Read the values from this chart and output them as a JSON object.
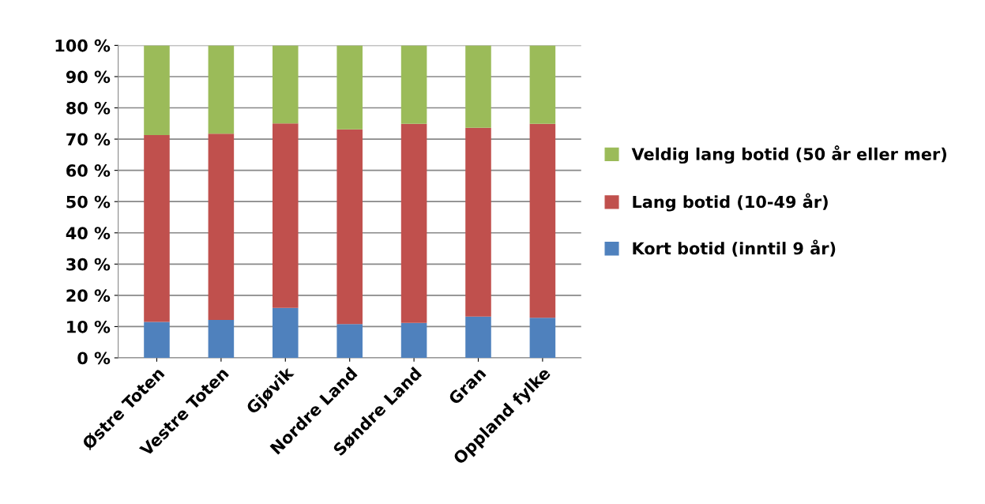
{
  "chart_data": {
    "type": "bar",
    "stacked": true,
    "categories": [
      "Østre Toten",
      "Vestre Toten",
      "Gjøvik",
      "Nordre Land",
      "Søndre Land",
      "Gran",
      "Oppland fylke"
    ],
    "series": [
      {
        "name": "Kort botid (inntil 9 år)",
        "color": "#4f81bd",
        "values": [
          11.5,
          12.1,
          16.0,
          10.8,
          11.2,
          13.2,
          12.8
        ]
      },
      {
        "name": "Lang botid (10-49 år)",
        "color": "#c0504d",
        "values": [
          59.8,
          59.6,
          59.0,
          62.3,
          63.7,
          60.4,
          62.1
        ]
      },
      {
        "name": "Veldig lang botid (50 år eller mer)",
        "color": "#9bbb59",
        "values": [
          28.7,
          28.3,
          25.0,
          26.9,
          25.1,
          26.4,
          25.1
        ]
      }
    ],
    "ylim": [
      0,
      100
    ],
    "yticks": [
      {
        "value": 0,
        "label": "0 %"
      },
      {
        "value": 10,
        "label": "10 %"
      },
      {
        "value": 20,
        "label": "20 %"
      },
      {
        "value": 30,
        "label": "30 %"
      },
      {
        "value": 40,
        "label": "40 %"
      },
      {
        "value": 50,
        "label": "50 %"
      },
      {
        "value": 60,
        "label": "60 %"
      },
      {
        "value": 70,
        "label": "70 %"
      },
      {
        "value": 80,
        "label": "80 %"
      },
      {
        "value": 90,
        "label": "90 %"
      },
      {
        "value": 100,
        "label": "100 %"
      }
    ],
    "grid": "y",
    "legend": "right"
  }
}
